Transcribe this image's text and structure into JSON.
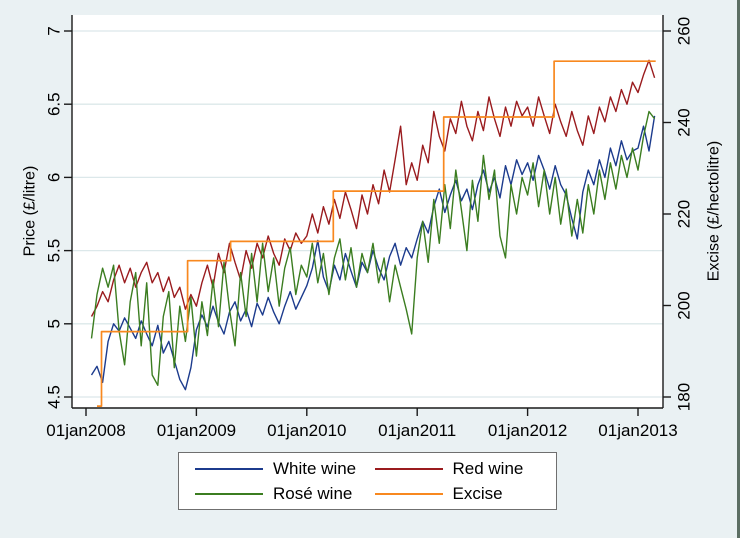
{
  "colors": {
    "background": "#eaf1f3",
    "plot_background": "#ffffff",
    "gridline": "#dce8ea",
    "axis": "#1a1a1a",
    "white_wine": "#1c3b8d",
    "red_wine": "#9a1b1e",
    "rose_wine": "#3b7d20",
    "excise": "#f8881f"
  },
  "chart_data": {
    "type": "line",
    "title": "",
    "grid": true,
    "legend_position": "bottom",
    "x_axis": {
      "label": "",
      "tick_years": [
        2008,
        2009,
        2010,
        2011,
        2012,
        2013
      ],
      "tick_labels": [
        "01jan2008",
        "01jan2009",
        "01jan2010",
        "01jan2011",
        "01jan2012",
        "01jan2013"
      ]
    },
    "y_left": {
      "label": "Price (£/litre)",
      "range": [
        4.5,
        7
      ],
      "ticks": [
        4.5,
        5,
        5.5,
        6,
        6.5,
        7
      ],
      "tick_labels": [
        "4.5",
        "5",
        "5.5",
        "6",
        "6.5",
        "7"
      ]
    },
    "y_right": {
      "label": "Excise (£/hectolitre)",
      "range": [
        180,
        260
      ],
      "ticks": [
        180,
        200,
        220,
        240,
        260
      ],
      "tick_labels": [
        "180",
        "200",
        "220",
        "240",
        "260"
      ]
    },
    "t": [
      2008.05,
      2008.1,
      2008.15,
      2008.2,
      2008.25,
      2008.3,
      2008.35,
      2008.4,
      2008.45,
      2008.5,
      2008.55,
      2008.6,
      2008.65,
      2008.7,
      2008.75,
      2008.8,
      2008.85,
      2008.9,
      2008.95,
      2009.0,
      2009.05,
      2009.1,
      2009.15,
      2009.2,
      2009.25,
      2009.3,
      2009.35,
      2009.4,
      2009.45,
      2009.5,
      2009.55,
      2009.6,
      2009.65,
      2009.7,
      2009.75,
      2009.8,
      2009.85,
      2009.9,
      2009.95,
      2010.0,
      2010.05,
      2010.1,
      2010.15,
      2010.2,
      2010.25,
      2010.3,
      2010.35,
      2010.4,
      2010.45,
      2010.5,
      2010.55,
      2010.6,
      2010.65,
      2010.7,
      2010.75,
      2010.8,
      2010.85,
      2010.9,
      2010.95,
      2011.0,
      2011.05,
      2011.1,
      2011.15,
      2011.2,
      2011.25,
      2011.3,
      2011.35,
      2011.4,
      2011.45,
      2011.5,
      2011.55,
      2011.6,
      2011.65,
      2011.7,
      2011.75,
      2011.8,
      2011.85,
      2011.9,
      2011.95,
      2012.0,
      2012.05,
      2012.1,
      2012.15,
      2012.2,
      2012.25,
      2012.3,
      2012.35,
      2012.4,
      2012.45,
      2012.5,
      2012.55,
      2012.6,
      2012.65,
      2012.7,
      2012.75,
      2012.8,
      2012.85,
      2012.9,
      2012.95,
      2013.0,
      2013.05,
      2013.1,
      2013.15
    ],
    "series": [
      {
        "name": "White wine",
        "axis": "left",
        "color": "#1c3b8d",
        "values": [
          4.65,
          4.71,
          4.6,
          4.88,
          5.0,
          4.95,
          5.04,
          4.97,
          4.9,
          5.02,
          4.93,
          4.85,
          4.99,
          4.8,
          4.88,
          4.75,
          4.62,
          4.55,
          4.7,
          4.96,
          5.06,
          4.98,
          5.12,
          5.01,
          4.93,
          5.08,
          5.15,
          5.02,
          5.1,
          4.98,
          5.14,
          5.06,
          5.18,
          5.08,
          5.0,
          5.12,
          5.22,
          5.1,
          5.18,
          5.26,
          5.38,
          5.57,
          5.32,
          5.22,
          5.4,
          5.3,
          5.48,
          5.36,
          5.25,
          5.42,
          5.35,
          5.5,
          5.38,
          5.3,
          5.46,
          5.55,
          5.4,
          5.52,
          5.45,
          5.58,
          5.7,
          5.62,
          5.8,
          5.92,
          5.76,
          5.88,
          5.98,
          5.84,
          5.92,
          5.78,
          5.95,
          6.05,
          5.9,
          6.0,
          5.86,
          6.08,
          5.95,
          6.12,
          6.02,
          6.1,
          5.98,
          6.15,
          6.05,
          5.92,
          6.08,
          5.95,
          5.88,
          5.72,
          5.58,
          5.9,
          6.05,
          5.95,
          6.12,
          6.0,
          6.2,
          6.08,
          6.25,
          6.12,
          6.18,
          6.2,
          6.35,
          6.18,
          6.42
        ]
      },
      {
        "name": "Red wine",
        "axis": "left",
        "color": "#9a1b1e",
        "values": [
          5.05,
          5.12,
          5.22,
          5.15,
          5.3,
          5.4,
          5.28,
          5.38,
          5.25,
          5.35,
          5.42,
          5.28,
          5.35,
          5.22,
          5.32,
          5.18,
          5.25,
          5.1,
          5.2,
          5.12,
          5.28,
          5.4,
          5.25,
          5.48,
          5.35,
          5.55,
          5.42,
          5.3,
          5.5,
          5.38,
          5.55,
          5.45,
          5.6,
          5.48,
          5.4,
          5.58,
          5.5,
          5.62,
          5.55,
          5.6,
          5.75,
          5.62,
          5.8,
          5.68,
          5.85,
          5.72,
          5.9,
          5.78,
          5.65,
          5.88,
          5.75,
          5.95,
          5.82,
          6.05,
          5.9,
          6.12,
          6.35,
          5.95,
          6.1,
          5.98,
          6.22,
          6.1,
          6.45,
          6.28,
          6.18,
          6.4,
          6.3,
          6.52,
          6.35,
          6.25,
          6.45,
          6.32,
          6.55,
          6.4,
          6.28,
          6.48,
          6.35,
          6.52,
          6.42,
          6.48,
          6.35,
          6.55,
          6.42,
          6.3,
          6.5,
          6.38,
          6.28,
          6.45,
          6.32,
          6.22,
          6.42,
          6.3,
          6.48,
          6.38,
          6.55,
          6.45,
          6.6,
          6.5,
          6.65,
          6.58,
          6.7,
          6.8,
          6.68
        ]
      },
      {
        "name": "Rosé wine",
        "axis": "left",
        "color": "#3b7d20",
        "values": [
          4.9,
          5.2,
          5.38,
          5.25,
          5.4,
          4.95,
          4.72,
          5.15,
          5.35,
          4.85,
          5.28,
          4.65,
          4.58,
          5.05,
          5.22,
          4.7,
          5.12,
          4.88,
          5.18,
          4.78,
          5.15,
          4.92,
          5.3,
          4.98,
          5.42,
          5.1,
          4.85,
          5.35,
          5.05,
          5.48,
          5.15,
          5.55,
          5.22,
          5.45,
          5.12,
          5.38,
          5.52,
          5.2,
          5.4,
          5.32,
          5.55,
          5.28,
          5.48,
          5.2,
          5.45,
          5.58,
          5.3,
          5.52,
          5.25,
          5.48,
          5.35,
          5.55,
          5.28,
          5.45,
          5.15,
          5.4,
          5.25,
          5.1,
          4.93,
          5.45,
          5.7,
          5.42,
          5.85,
          5.55,
          5.95,
          5.65,
          6.05,
          5.78,
          5.5,
          5.98,
          5.7,
          6.15,
          5.85,
          6.05,
          5.6,
          5.45,
          5.95,
          5.75,
          6.0,
          5.88,
          6.1,
          5.8,
          6.05,
          5.75,
          6.0,
          5.68,
          5.92,
          5.6,
          5.85,
          5.62,
          5.95,
          5.75,
          6.05,
          5.85,
          6.1,
          5.92,
          6.15,
          6.0,
          6.2,
          6.05,
          6.28,
          6.45,
          6.4
        ]
      },
      {
        "name": "Excise",
        "axis": "right",
        "color": "#f8881f",
        "step_points": [
          [
            2008.1,
            178.0
          ],
          [
            2008.14,
            178.0
          ],
          [
            2008.14,
            194.3
          ],
          [
            2008.92,
            194.3
          ],
          [
            2008.92,
            209.8
          ],
          [
            2009.31,
            209.8
          ],
          [
            2009.31,
            214.0
          ],
          [
            2010.24,
            214.0
          ],
          [
            2010.24,
            225.0
          ],
          [
            2011.24,
            225.0
          ],
          [
            2011.24,
            241.2
          ],
          [
            2012.24,
            241.2
          ],
          [
            2012.24,
            253.4
          ],
          [
            2013.16,
            253.4
          ]
        ]
      }
    ]
  },
  "legend": {
    "entries": [
      "White wine",
      "Red wine",
      "Rosé wine",
      "Excise"
    ]
  }
}
